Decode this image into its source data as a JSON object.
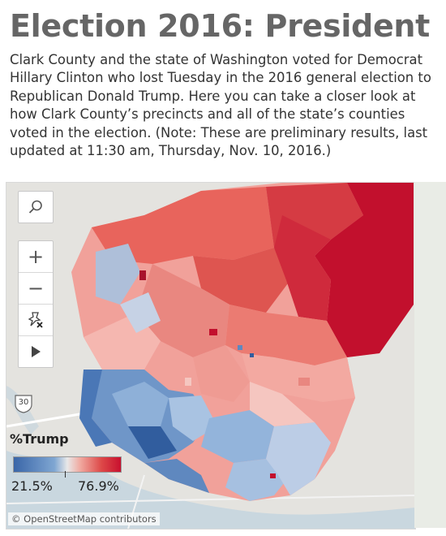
{
  "header": {
    "title": "Election 2016: President",
    "intro": "Clark County and the state of Washington voted for Democrat Hillary Clinton who lost Tuesday in the 2016 general election to Republican Donald Trump. Here you can take a closer look at how Clark County’s precincts and all of the state’s counties voted in the election. (Note: These are preliminary results, last updated at 11:30 am, Thursday, Nov. 10, 2016.)"
  },
  "map": {
    "controls": {
      "search": "search-icon",
      "zoom_in": "+",
      "zoom_out": "−",
      "pin": "pin-off-icon",
      "play": "play-icon"
    },
    "highway_label": "30",
    "credit": "© OpenStreetMap contributors"
  },
  "legend": {
    "title": "%Trump",
    "min_label": "21.5%",
    "max_label": "76.9%",
    "min_value": 21.5,
    "max_value": 76.9,
    "colors": {
      "low": "#3a66a8",
      "mid": "#e8e8e8",
      "high": "#c8102e"
    }
  }
}
